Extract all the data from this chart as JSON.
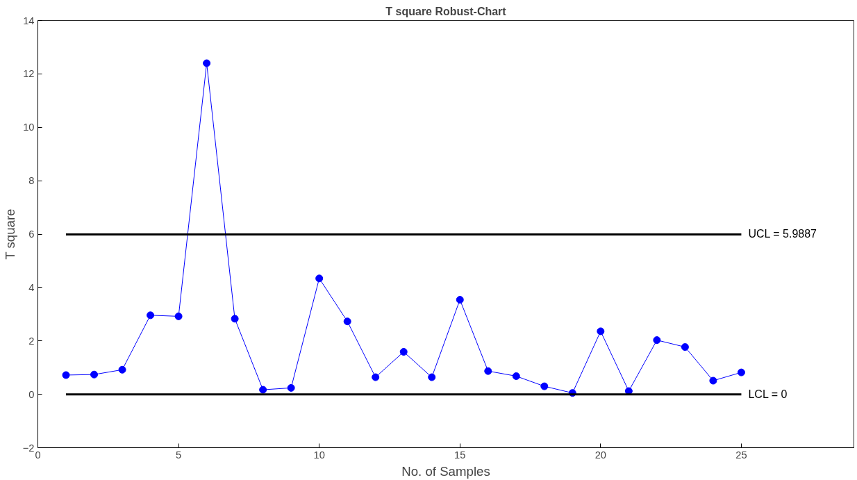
{
  "chart_data": {
    "type": "line",
    "title": "T square Robust-Chart",
    "xlabel": "No. of Samples",
    "ylabel": "T square",
    "x": [
      1,
      2,
      3,
      4,
      5,
      6,
      7,
      8,
      9,
      10,
      11,
      12,
      13,
      14,
      15,
      16,
      17,
      18,
      19,
      20,
      21,
      22,
      23,
      24,
      25
    ],
    "series": [
      {
        "color": "#0000ff",
        "values": [
          0.72,
          0.74,
          0.92,
          2.96,
          2.92,
          12.4,
          2.83,
          0.17,
          0.24,
          4.34,
          2.73,
          0.64,
          1.59,
          0.64,
          3.54,
          0.87,
          0.68,
          0.3,
          0.05,
          2.36,
          0.12,
          2.03,
          1.77,
          0.51,
          0.82
        ]
      }
    ],
    "marker": "circle",
    "line_style": "solid",
    "grid": false,
    "xlim": [
      0,
      29
    ],
    "xticks": [
      0,
      5,
      10,
      15,
      20,
      25
    ],
    "ylim": [
      -2,
      14
    ],
    "yticks": [
      -2,
      0,
      2,
      4,
      6,
      8,
      10,
      12,
      14
    ],
    "ref_lines": [
      {
        "axis": "y",
        "value": 5.9887,
        "label": "UCL = 5.9887",
        "color": "#000000"
      },
      {
        "axis": "y",
        "value": 0,
        "label": "LCL = 0",
        "color": "#000000"
      }
    ]
  }
}
